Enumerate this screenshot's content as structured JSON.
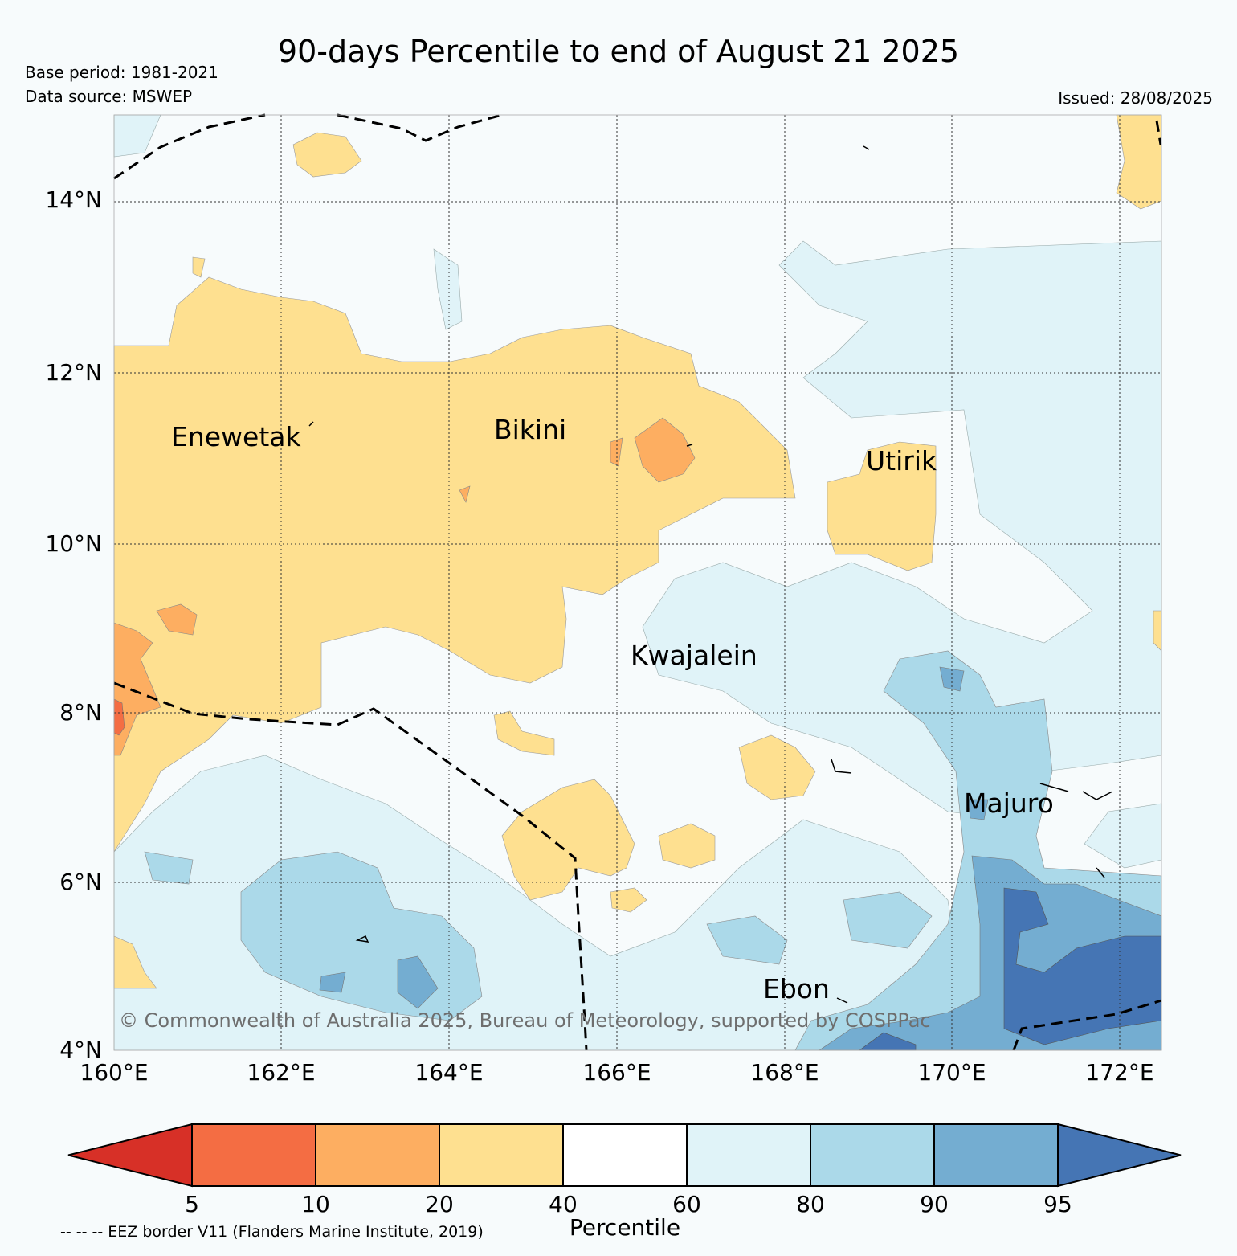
{
  "header": {
    "title": "90-days Percentile to end of August 21 2025",
    "base_period": "Base period: 1981-2021",
    "data_source": "Data source: MSWEP",
    "issued": "Issued: 28/08/2025"
  },
  "map": {
    "lat_ticks": [
      "14°N",
      "12°N",
      "10°N",
      "8°N",
      "6°N",
      "4°N"
    ],
    "lon_ticks": [
      "160°E",
      "162°E",
      "164°E",
      "166°E",
      "168°E",
      "170°E",
      "172°E"
    ],
    "places": {
      "enewetak": "Enewetak",
      "bikini": "Bikini",
      "utirik": "Utirik",
      "kwajalein": "Kwajalein",
      "majuro": "Majuro",
      "ebon": "Ebon"
    },
    "copyright": "© Commonwealth of Australia 2025, Bureau of Meteorology, supported by COSPPac"
  },
  "legend": {
    "label": "Percentile",
    "ticks": [
      "5",
      "10",
      "20",
      "40",
      "60",
      "80",
      "90",
      "95"
    ],
    "colors": [
      "#d73027",
      "#f46d43",
      "#fdae61",
      "#fee090",
      "#ffffff",
      "#e0f3f8",
      "#abd9e9",
      "#74add1",
      "#4575b4"
    ],
    "eez_note": "-- -- -- EEZ border V11 (Flanders Marine Institute, 2019)"
  }
}
